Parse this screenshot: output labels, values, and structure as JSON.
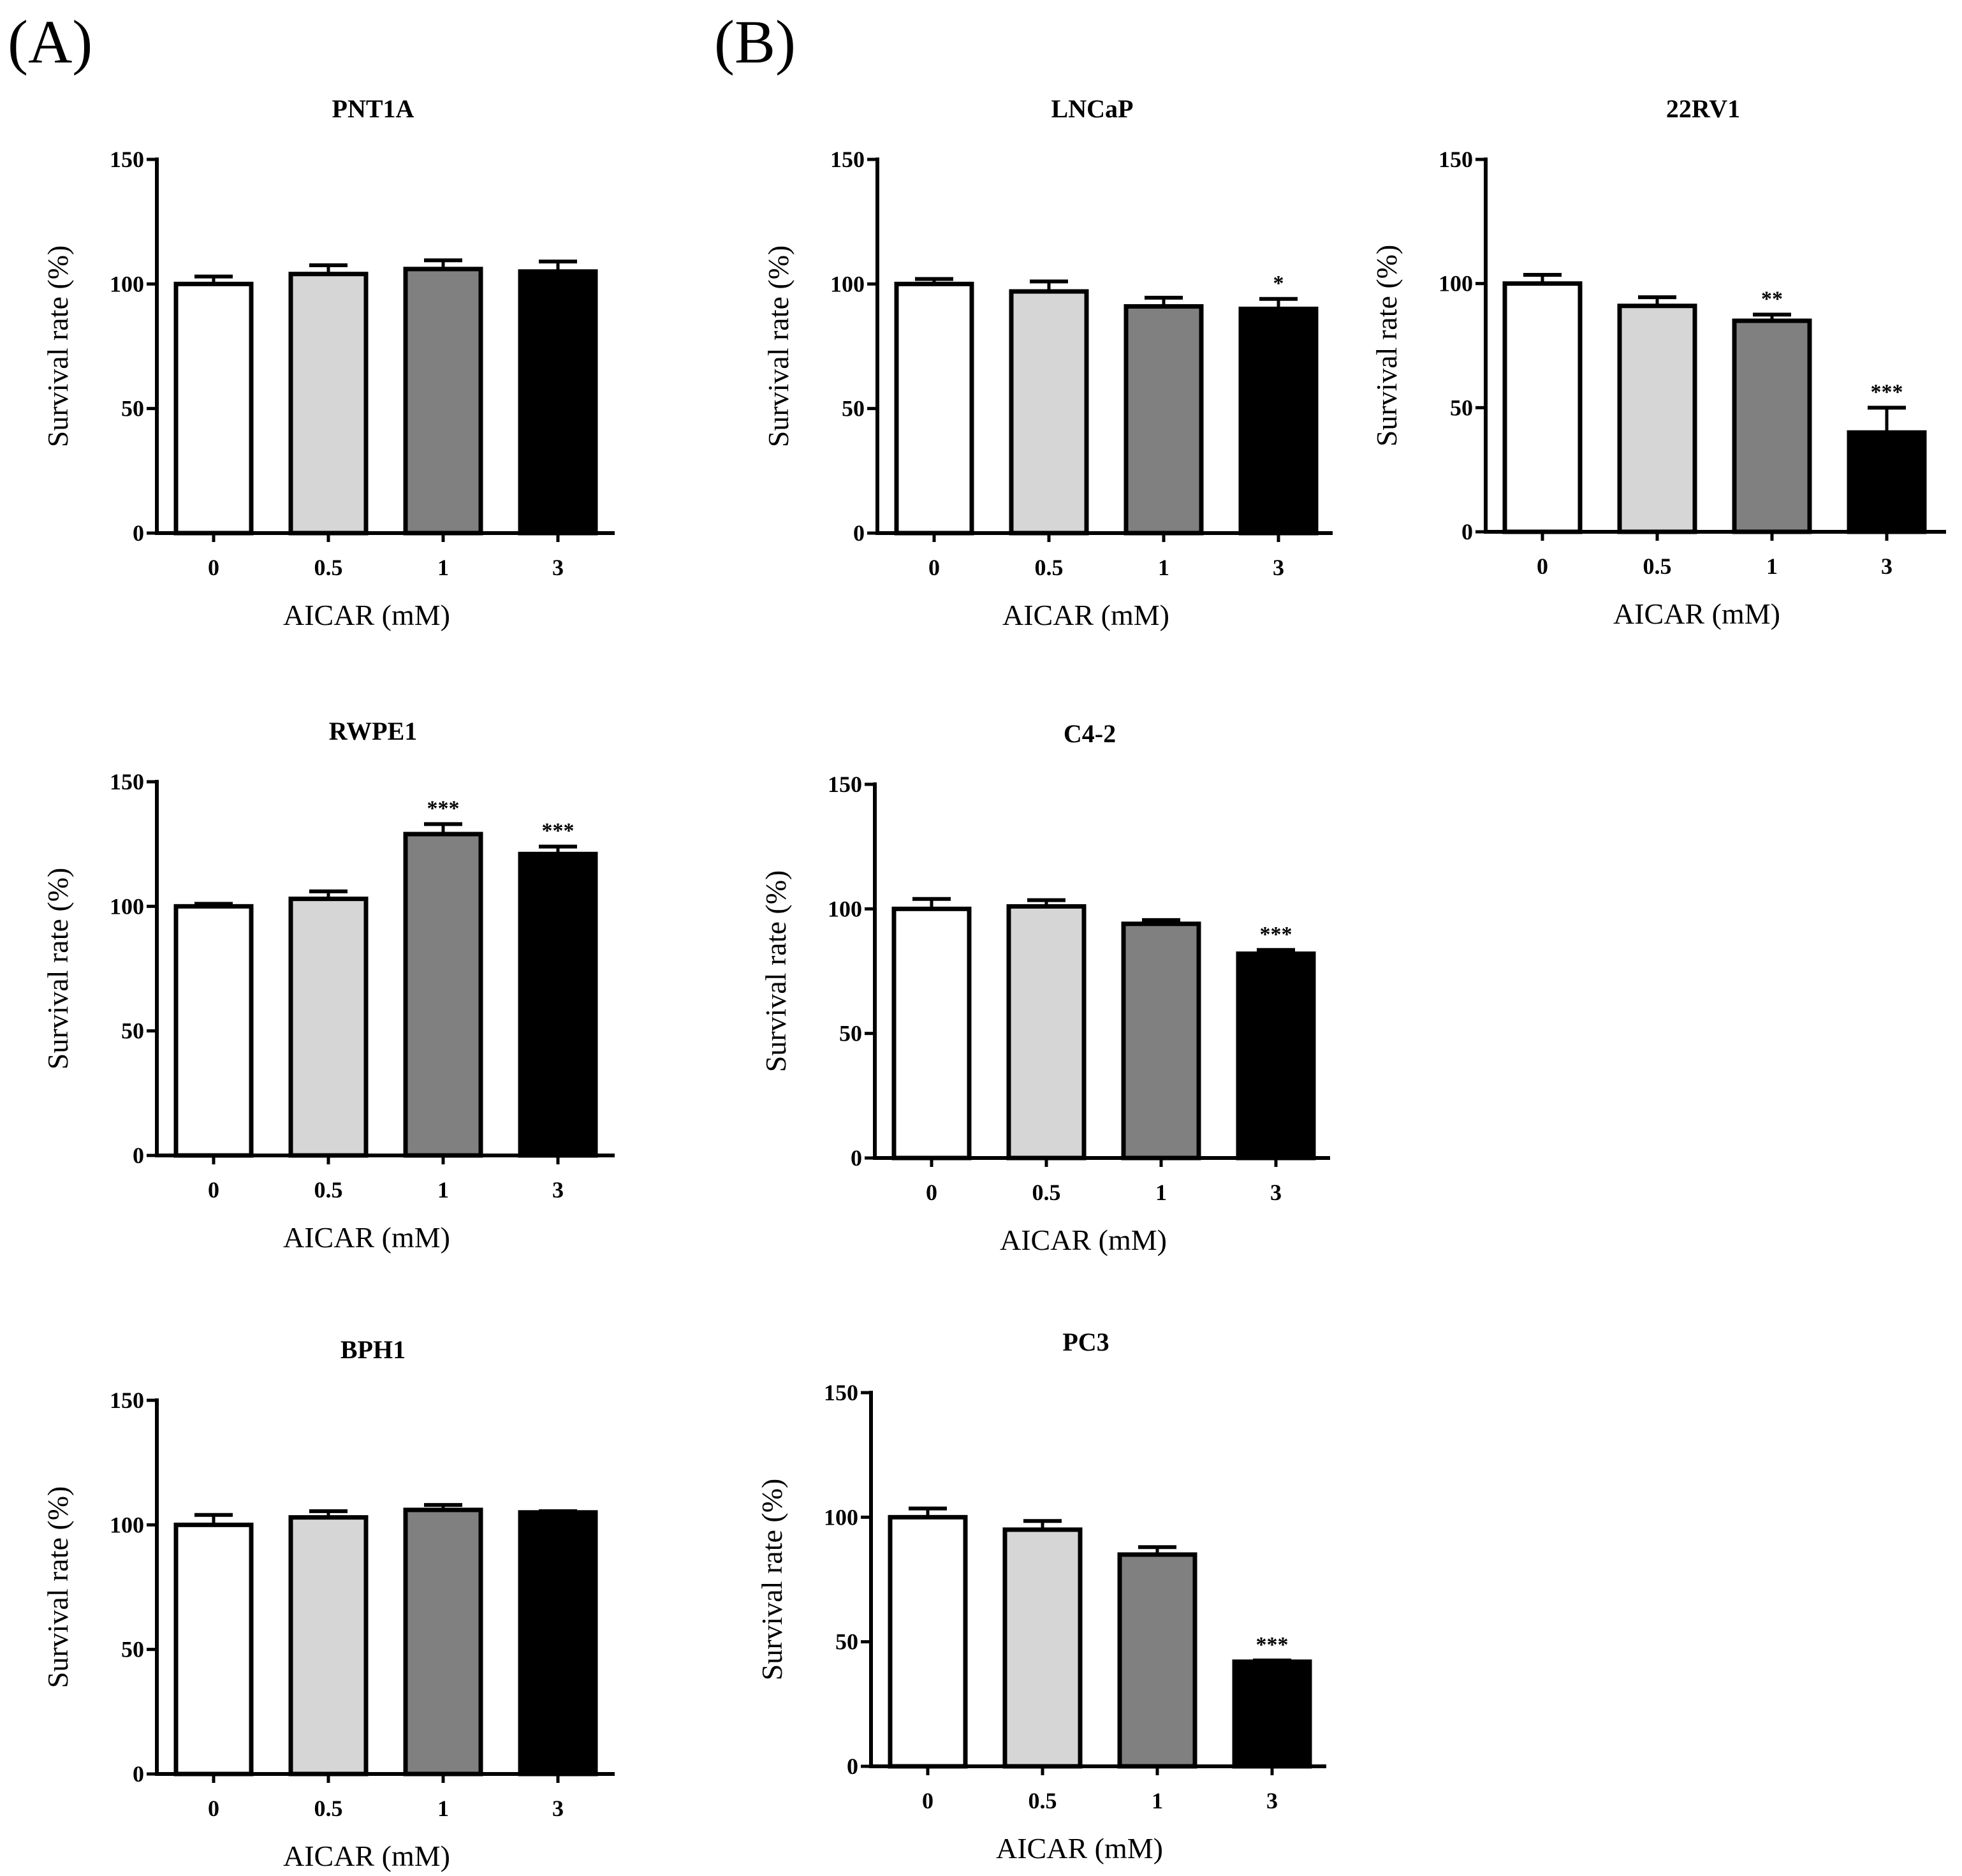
{
  "figure": {
    "panel_labels": [
      "(A)",
      "(B)"
    ],
    "bar_colors": [
      "#ffffff",
      "#d6d6d6",
      "#808080",
      "#000000"
    ],
    "edge_color": "#000000"
  },
  "chart_data": [
    {
      "id": "pnt1a",
      "type": "bar",
      "title": "PNT1A",
      "xlabel": "AICAR (mM)",
      "ylabel": "Survival rate (%)",
      "ylim": [
        0,
        150
      ],
      "yticks": [
        0,
        50,
        100,
        150
      ],
      "categories": [
        "0",
        "0.5",
        "1",
        "3"
      ],
      "values": [
        100,
        104,
        106,
        105
      ],
      "errors": [
        3,
        3.5,
        3.5,
        4
      ],
      "significance": [
        "",
        "",
        "",
        ""
      ]
    },
    {
      "id": "rwpe1",
      "type": "bar",
      "title": "RWPE1",
      "xlabel": "AICAR (mM)",
      "ylabel": "Survival rate (%)",
      "ylim": [
        0,
        150
      ],
      "yticks": [
        0,
        50,
        100,
        150
      ],
      "categories": [
        "0",
        "0.5",
        "1",
        "3"
      ],
      "values": [
        100,
        103,
        129,
        121
      ],
      "errors": [
        1,
        3,
        4,
        3
      ],
      "significance": [
        "",
        "",
        "***",
        "***"
      ]
    },
    {
      "id": "bph1",
      "type": "bar",
      "title": "BPH1",
      "xlabel": "AICAR (mM)",
      "ylabel": "Survival rate (%)",
      "ylim": [
        0,
        150
      ],
      "yticks": [
        0,
        50,
        100,
        150
      ],
      "categories": [
        "0",
        "0.5",
        "1",
        "3"
      ],
      "values": [
        100,
        103,
        106,
        105
      ],
      "errors": [
        4,
        2.5,
        2,
        0.5
      ],
      "significance": [
        "",
        "",
        "",
        ""
      ]
    },
    {
      "id": "lncap",
      "type": "bar",
      "title": "LNCaP",
      "xlabel": "AICAR (mM)",
      "ylabel": "Survival rate (%)",
      "ylim": [
        0,
        150
      ],
      "yticks": [
        0,
        50,
        100,
        150
      ],
      "categories": [
        "0",
        "0.5",
        "1",
        "3"
      ],
      "values": [
        100,
        97,
        91,
        90
      ],
      "errors": [
        2,
        4,
        3.5,
        4
      ],
      "significance": [
        "",
        "",
        "",
        "*"
      ]
    },
    {
      "id": "c42",
      "type": "bar",
      "title": "C4-2",
      "xlabel": "AICAR (mM)",
      "ylabel": "Survival rate (%)",
      "ylim": [
        0,
        150
      ],
      "yticks": [
        0,
        50,
        100,
        150
      ],
      "categories": [
        "0",
        "0.5",
        "1",
        "3"
      ],
      "values": [
        100,
        101,
        94,
        82
      ],
      "errors": [
        4,
        2.5,
        1.5,
        1.5
      ],
      "significance": [
        "",
        "",
        "",
        "***"
      ]
    },
    {
      "id": "pc3",
      "type": "bar",
      "title": "PC3",
      "xlabel": "AICAR (mM)",
      "ylabel": "Survival rate (%)",
      "ylim": [
        0,
        150
      ],
      "yticks": [
        0,
        50,
        100,
        150
      ],
      "categories": [
        "0",
        "0.5",
        "1",
        "3"
      ],
      "values": [
        100,
        95,
        85,
        42
      ],
      "errors": [
        3.5,
        3.5,
        3,
        0.5
      ],
      "significance": [
        "",
        "",
        "",
        "***"
      ]
    },
    {
      "id": "22rv1",
      "type": "bar",
      "title": "22RV1",
      "xlabel": "AICAR (mM)",
      "ylabel": "Survival rate (%)",
      "ylim": [
        0,
        150
      ],
      "yticks": [
        0,
        50,
        100,
        150
      ],
      "categories": [
        "0",
        "0.5",
        "1",
        "3"
      ],
      "values": [
        100,
        91,
        85,
        40
      ],
      "errors": [
        3.5,
        3.5,
        2.5,
        10
      ],
      "significance": [
        "",
        "",
        "**",
        "***"
      ]
    }
  ]
}
